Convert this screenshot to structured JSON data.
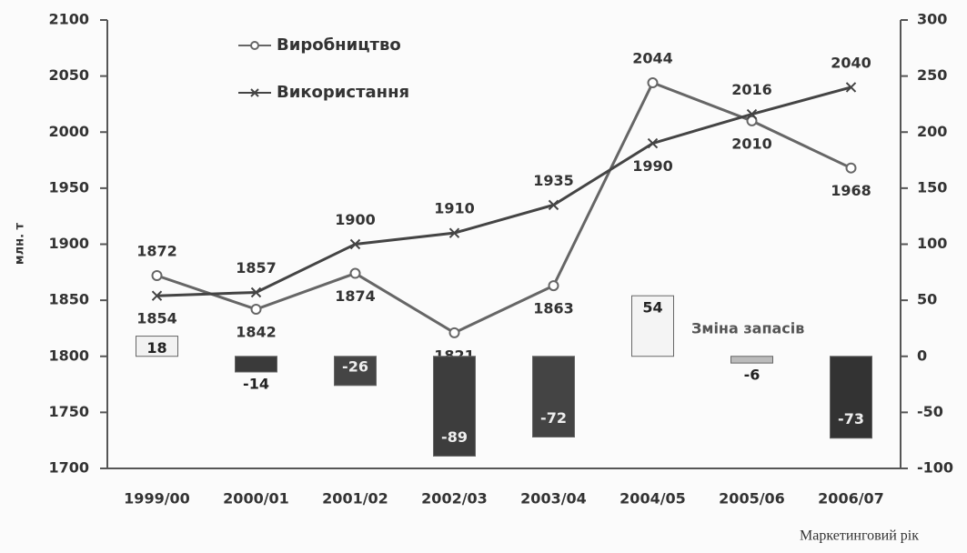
{
  "chart_data": {
    "type": "combo",
    "categories": [
      "1999/00",
      "2000/01",
      "2001/02",
      "2002/03",
      "2003/04",
      "2004/05",
      "2005/06",
      "2006/07"
    ],
    "ylabel": "млн. т",
    "xlabel": "Маркетинговий рік",
    "ylim": [
      1700,
      2100
    ],
    "yticks": [
      1700,
      1750,
      1800,
      1850,
      1900,
      1950,
      2000,
      2050,
      2100
    ],
    "y2lim": [
      -100,
      300
    ],
    "y2ticks": [
      -100,
      -50,
      0,
      50,
      100,
      150,
      200,
      250,
      300
    ],
    "legend": "upper left",
    "series": [
      {
        "name": "Виробництво",
        "type": "line",
        "marker": "circle",
        "color": "#666666",
        "values": [
          1872,
          1842,
          1874,
          1821,
          1863,
          2044,
          2010,
          1968
        ]
      },
      {
        "name": "Використання",
        "type": "line",
        "marker": "x",
        "color": "#444444",
        "values": [
          1854,
          1857,
          1900,
          1910,
          1935,
          1990,
          2016,
          2040
        ]
      },
      {
        "name": "Зміна запасів",
        "type": "bar",
        "axis": "y2",
        "colors": [
          "#f2f2f2",
          "#3a3a3a",
          "#454545",
          "#3d3d3d",
          "#444444",
          "#f4f4f4",
          "#bbbbbb",
          "#333333"
        ],
        "values": [
          18,
          -14,
          -26,
          -89,
          -72,
          54,
          -6,
          -73
        ]
      }
    ]
  }
}
